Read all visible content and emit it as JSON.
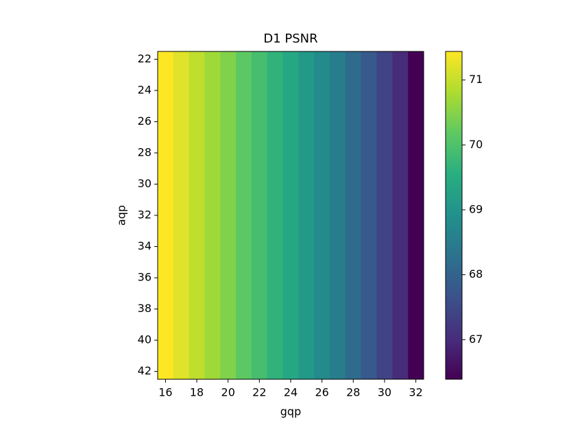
{
  "chart_data": {
    "type": "heatmap",
    "title": "D1 PSNR",
    "x_label": "gqp",
    "y_label": "aqp",
    "x": [
      16,
      17,
      18,
      19,
      20,
      21,
      22,
      23,
      24,
      25,
      26,
      27,
      28,
      29,
      30,
      31,
      32
    ],
    "values": [
      71.44,
      71.2,
      70.95,
      70.7,
      70.45,
      70.15,
      69.9,
      69.65,
      69.4,
      69.1,
      68.8,
      68.5,
      68.15,
      67.8,
      67.4,
      67.0,
      66.39
    ],
    "xlim": [
      15.5,
      32.5
    ],
    "xticks": [
      16,
      18,
      20,
      22,
      24,
      26,
      28,
      30,
      32
    ],
    "ylim": [
      21.5,
      42.5
    ],
    "yticks": [
      22,
      24,
      26,
      28,
      30,
      32,
      34,
      36,
      38,
      40,
      42
    ],
    "y_inverted": true,
    "cmap": "viridis",
    "clim": [
      66.39,
      71.44
    ],
    "cticks": [
      67,
      68,
      69,
      70,
      71
    ]
  }
}
